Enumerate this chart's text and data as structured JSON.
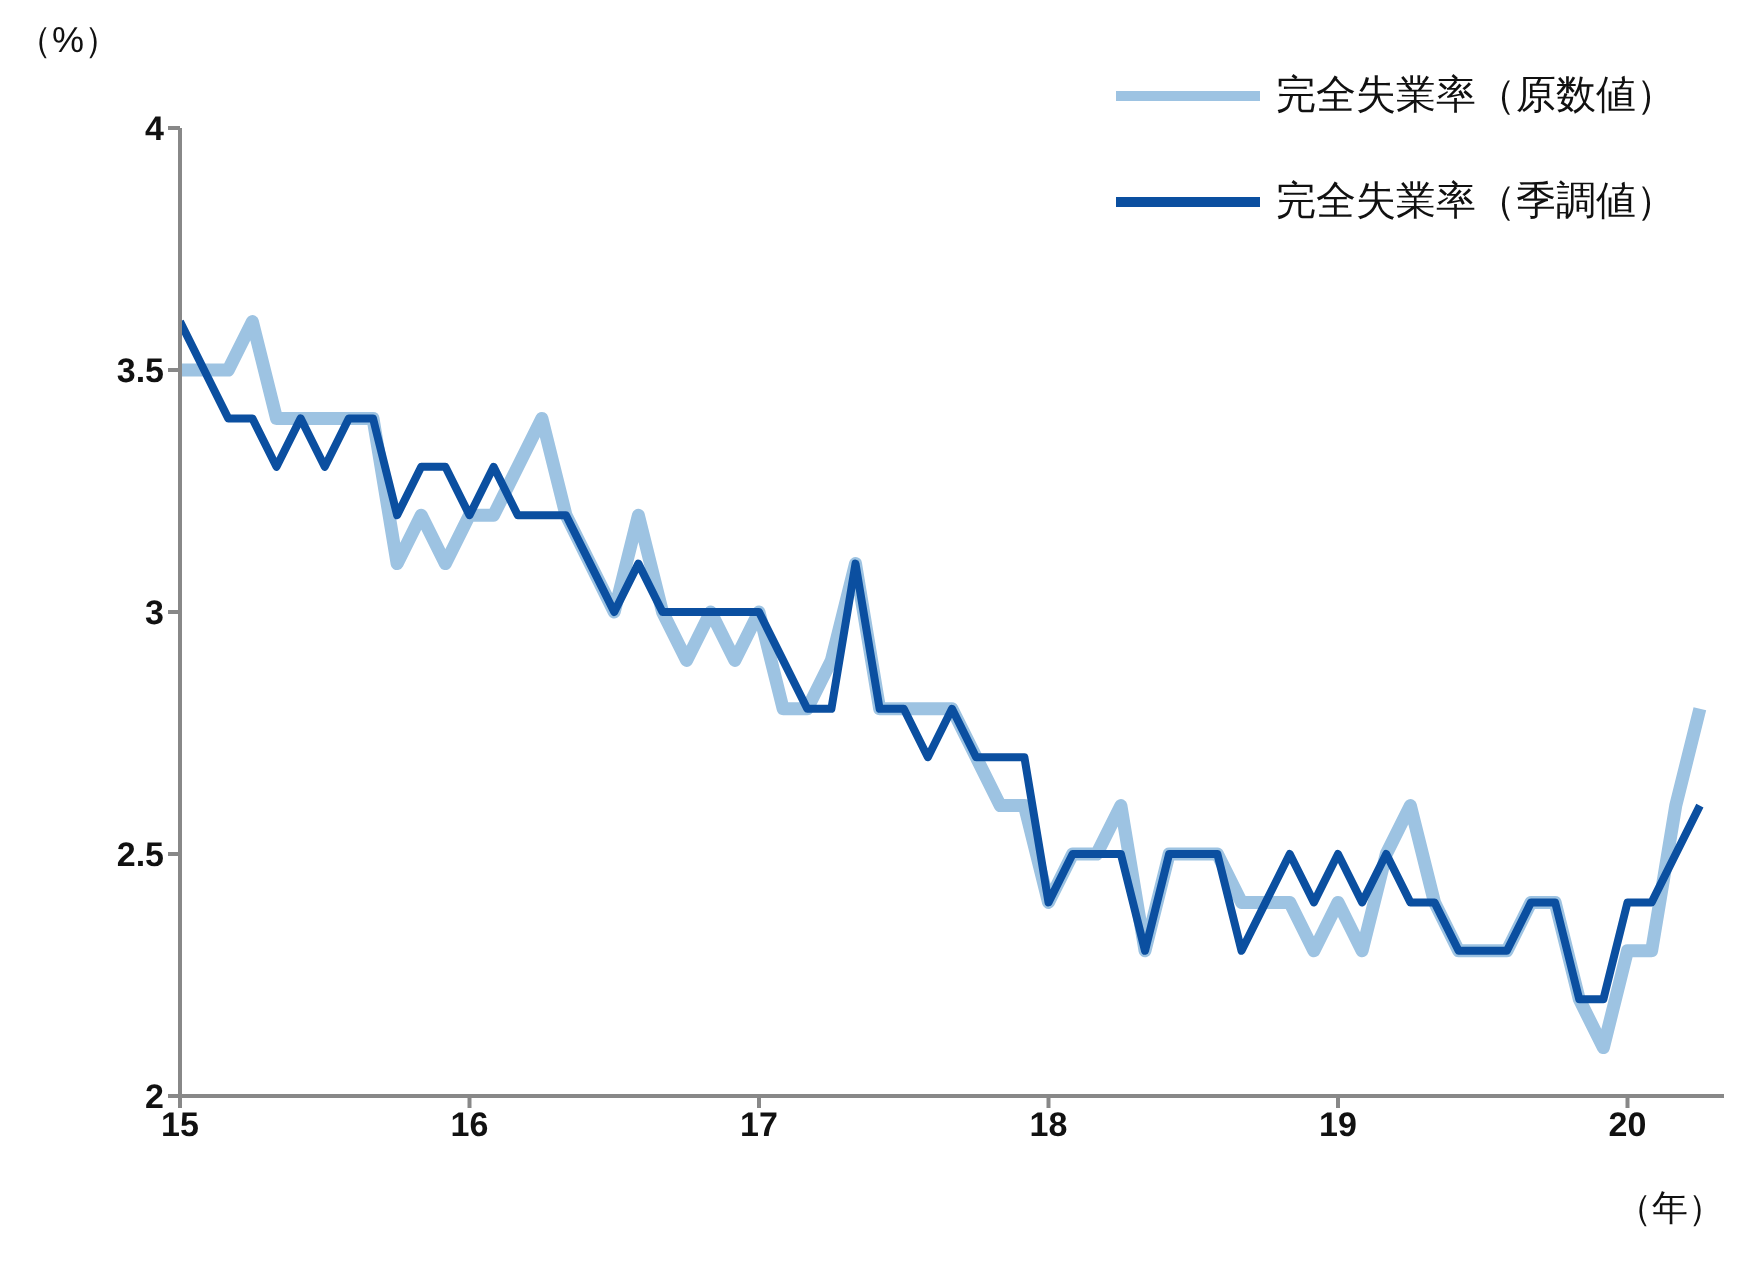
{
  "chart_data": {
    "type": "line",
    "ylabel": "（%）",
    "xlabel": "（年）",
    "x": [
      "2015-01",
      "2015-02",
      "2015-03",
      "2015-04",
      "2015-05",
      "2015-06",
      "2015-07",
      "2015-08",
      "2015-09",
      "2015-10",
      "2015-11",
      "2015-12",
      "2016-01",
      "2016-02",
      "2016-03",
      "2016-04",
      "2016-05",
      "2016-06",
      "2016-07",
      "2016-08",
      "2016-09",
      "2016-10",
      "2016-11",
      "2016-12",
      "2017-01",
      "2017-02",
      "2017-03",
      "2017-04",
      "2017-05",
      "2017-06",
      "2017-07",
      "2017-08",
      "2017-09",
      "2017-10",
      "2017-11",
      "2017-12",
      "2018-01",
      "2018-02",
      "2018-03",
      "2018-04",
      "2018-05",
      "2018-06",
      "2018-07",
      "2018-08",
      "2018-09",
      "2018-10",
      "2018-11",
      "2018-12",
      "2019-01",
      "2019-02",
      "2019-03",
      "2019-04",
      "2019-05",
      "2019-06",
      "2019-07",
      "2019-08",
      "2019-09",
      "2019-10",
      "2019-11",
      "2019-12",
      "2020-01",
      "2020-02",
      "2020-03",
      "2020-04"
    ],
    "series": [
      {
        "name": "完全失業率（原数値）",
        "color": "#9dc3e2",
        "values": [
          3.5,
          3.5,
          3.5,
          3.6,
          3.4,
          3.4,
          3.4,
          3.4,
          3.4,
          3.1,
          3.2,
          3.1,
          3.2,
          3.2,
          3.3,
          3.4,
          3.2,
          3.1,
          3.0,
          3.2,
          3.0,
          2.9,
          3.0,
          2.9,
          3.0,
          2.8,
          2.8,
          2.9,
          3.1,
          2.8,
          2.8,
          2.8,
          2.8,
          2.7,
          2.6,
          2.6,
          2.4,
          2.5,
          2.5,
          2.6,
          2.3,
          2.5,
          2.5,
          2.5,
          2.4,
          2.4,
          2.4,
          2.3,
          2.4,
          2.3,
          2.5,
          2.6,
          2.4,
          2.3,
          2.3,
          2.3,
          2.4,
          2.4,
          2.2,
          2.1,
          2.3,
          2.3,
          2.6,
          2.8
        ]
      },
      {
        "name": "完全失業率（季調値）",
        "color": "#0b4fa0",
        "values": [
          3.6,
          3.5,
          3.4,
          3.4,
          3.3,
          3.4,
          3.3,
          3.4,
          3.4,
          3.2,
          3.3,
          3.3,
          3.2,
          3.3,
          3.2,
          3.2,
          3.2,
          3.1,
          3.0,
          3.1,
          3.0,
          3.0,
          3.0,
          3.0,
          3.0,
          2.9,
          2.8,
          2.8,
          3.1,
          2.8,
          2.8,
          2.7,
          2.8,
          2.7,
          2.7,
          2.7,
          2.4,
          2.5,
          2.5,
          2.5,
          2.3,
          2.5,
          2.5,
          2.5,
          2.3,
          2.4,
          2.5,
          2.4,
          2.5,
          2.4,
          2.5,
          2.4,
          2.4,
          2.3,
          2.3,
          2.3,
          2.4,
          2.4,
          2.2,
          2.2,
          2.4,
          2.4,
          2.5,
          2.6
        ]
      }
    ],
    "xlim": [
      "2015-01",
      "2020-05"
    ],
    "xticks": [
      {
        "value": "2015-01",
        "label": "15"
      },
      {
        "value": "2016-01",
        "label": "16"
      },
      {
        "value": "2017-01",
        "label": "17"
      },
      {
        "value": "2018-01",
        "label": "18"
      },
      {
        "value": "2019-01",
        "label": "19"
      },
      {
        "value": "2020-01",
        "label": "20"
      }
    ],
    "ylim": [
      2,
      4
    ],
    "yticks": [
      2,
      2.5,
      3,
      3.5,
      4
    ],
    "grid": false,
    "legend": "top right",
    "marker": "none",
    "line_style": "solid"
  }
}
